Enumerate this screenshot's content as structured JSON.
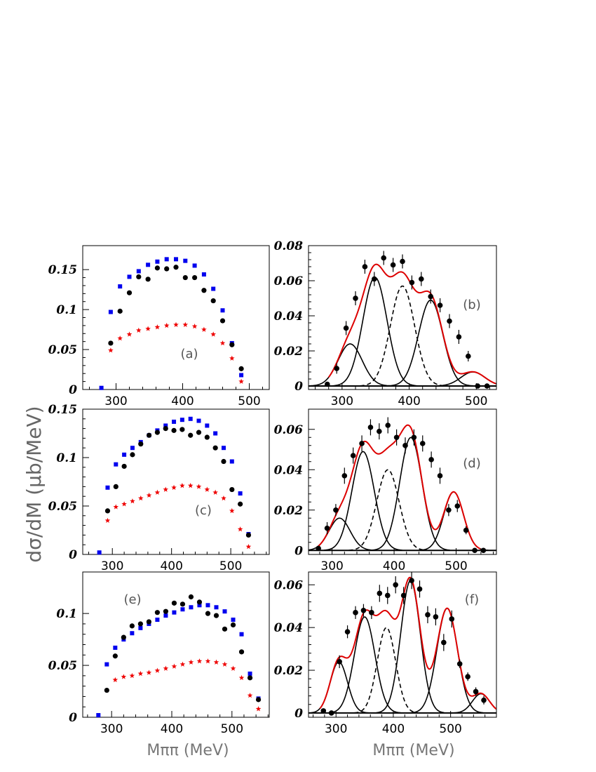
{
  "figure": {
    "y_axis_title": "dσ/dM  (μb/MeV)",
    "x_axis_title": "Mππ (MeV)"
  },
  "colors": {
    "blue": "#0000ee",
    "red": "#ee0000",
    "black": "#000000",
    "fit": "#dd0000"
  },
  "chart_data": [
    {
      "id": "a",
      "type": "scatter",
      "panel_label": "(a)",
      "xlim": [
        250,
        530
      ],
      "ylim": [
        0,
        0.18
      ],
      "xticks": [
        300,
        400,
        500
      ],
      "xtick_labels": [
        "300",
        "400",
        "500"
      ],
      "yticks": [
        0,
        0.05,
        0.1,
        0.15
      ],
      "ytick_labels": [
        "0",
        "0.05",
        "0.1",
        "0.15"
      ],
      "series": [
        {
          "marker": "square",
          "color": "blue",
          "x": [
            278,
            292,
            306,
            320,
            334,
            348,
            362,
            376,
            390,
            404,
            418,
            432,
            446,
            460,
            474,
            488
          ],
          "y": [
            0.002,
            0.097,
            0.129,
            0.141,
            0.148,
            0.156,
            0.16,
            0.163,
            0.163,
            0.161,
            0.155,
            0.144,
            0.126,
            0.099,
            0.058,
            0.018
          ]
        },
        {
          "marker": "circle",
          "color": "black",
          "x": [
            292,
            306,
            320,
            334,
            348,
            362,
            376,
            390,
            404,
            418,
            432,
            446,
            460,
            474,
            488
          ],
          "y": [
            0.058,
            0.098,
            0.121,
            0.141,
            0.138,
            0.152,
            0.151,
            0.153,
            0.14,
            0.14,
            0.124,
            0.111,
            0.086,
            0.056,
            0.026
          ]
        },
        {
          "marker": "star",
          "color": "red",
          "x": [
            292,
            306,
            320,
            334,
            348,
            362,
            376,
            390,
            404,
            418,
            432,
            446,
            460,
            474,
            488
          ],
          "y": [
            0.049,
            0.064,
            0.069,
            0.074,
            0.076,
            0.078,
            0.08,
            0.081,
            0.081,
            0.079,
            0.075,
            0.069,
            0.058,
            0.039,
            0.01
          ]
        }
      ]
    },
    {
      "id": "b",
      "type": "scatter",
      "panel_label": "(b)",
      "xlim": [
        250,
        530
      ],
      "ylim": [
        -0.002,
        0.08
      ],
      "xticks": [
        300,
        400,
        500
      ],
      "xtick_labels": [
        "300",
        "400",
        "500"
      ],
      "yticks": [
        0,
        0.02,
        0.04,
        0.06,
        0.08
      ],
      "ytick_labels": [
        "0",
        "0.02",
        "0.04",
        "0.06",
        "0.08"
      ],
      "data": {
        "x": [
          278,
          292,
          306,
          320,
          334,
          348,
          362,
          376,
          390,
          404,
          418,
          432,
          446,
          460,
          474,
          488,
          502,
          516
        ],
        "y": [
          0.001,
          0.01,
          0.033,
          0.05,
          0.068,
          0.061,
          0.073,
          0.069,
          0.071,
          0.059,
          0.061,
          0.051,
          0.046,
          0.037,
          0.028,
          0.017,
          0.0,
          0.0
        ],
        "err": [
          0.001,
          0.003,
          0.004,
          0.004,
          0.004,
          0.004,
          0.004,
          0.004,
          0.004,
          0.004,
          0.004,
          0.004,
          0.004,
          0.004,
          0.004,
          0.003,
          0.001,
          0.001
        ]
      },
      "components": [
        {
          "style": "solid",
          "amp": 0.024,
          "mu": 312,
          "sigma": 18
        },
        {
          "style": "solid",
          "amp": 0.062,
          "mu": 349,
          "sigma": 18
        },
        {
          "style": "dashed",
          "amp": 0.057,
          "mu": 390,
          "sigma": 18
        },
        {
          "style": "solid",
          "amp": 0.049,
          "mu": 432,
          "sigma": 18
        },
        {
          "style": "solid",
          "amp": 0.008,
          "mu": 495,
          "sigma": 18
        }
      ],
      "fit_range": [
        280,
        530
      ]
    },
    {
      "id": "c",
      "type": "scatter",
      "panel_label": "(c)",
      "xlim": [
        250,
        565
      ],
      "ylim": [
        0,
        0.15
      ],
      "xticks": [
        300,
        400,
        500
      ],
      "xtick_labels": [
        "300",
        "400",
        "500"
      ],
      "yticks": [
        0,
        0.05,
        0.1,
        0.15
      ],
      "ytick_labels": [
        "0",
        "0.05",
        "0.1",
        "0.15"
      ],
      "series": [
        {
          "marker": "square",
          "color": "blue",
          "x": [
            278,
            292,
            306,
            320,
            334,
            348,
            362,
            376,
            390,
            404,
            418,
            432,
            446,
            460,
            474,
            488,
            502,
            516,
            530
          ],
          "y": [
            0.002,
            0.069,
            0.093,
            0.103,
            0.11,
            0.116,
            0.123,
            0.128,
            0.133,
            0.137,
            0.139,
            0.14,
            0.138,
            0.133,
            0.125,
            0.11,
            0.096,
            0.063,
            0.021
          ]
        },
        {
          "marker": "circle",
          "color": "black",
          "x": [
            292,
            306,
            320,
            334,
            348,
            362,
            376,
            390,
            404,
            418,
            432,
            446,
            460,
            474,
            488,
            502,
            516,
            530
          ],
          "y": [
            0.045,
            0.07,
            0.091,
            0.103,
            0.114,
            0.123,
            0.126,
            0.13,
            0.128,
            0.129,
            0.123,
            0.126,
            0.121,
            0.11,
            0.096,
            0.067,
            0.052,
            0.02
          ]
        },
        {
          "marker": "star",
          "color": "red",
          "x": [
            292,
            306,
            320,
            334,
            348,
            362,
            376,
            390,
            404,
            418,
            432,
            446,
            460,
            474,
            488,
            502,
            516,
            530
          ],
          "y": [
            0.035,
            0.049,
            0.052,
            0.055,
            0.058,
            0.061,
            0.064,
            0.067,
            0.069,
            0.071,
            0.071,
            0.07,
            0.067,
            0.064,
            0.058,
            0.045,
            0.026,
            0.008
          ]
        }
      ]
    },
    {
      "id": "d",
      "type": "scatter",
      "panel_label": "(d)",
      "xlim": [
        262,
        565
      ],
      "ylim": [
        -0.002,
        0.07
      ],
      "xticks": [
        300,
        400,
        500
      ],
      "xtick_labels": [
        "300",
        "400",
        "500"
      ],
      "yticks": [
        0,
        0.02,
        0.04,
        0.06
      ],
      "ytick_labels": [
        "0",
        "0.02",
        "0.04",
        "0.06"
      ],
      "data": {
        "x": [
          278,
          292,
          306,
          320,
          334,
          348,
          362,
          376,
          390,
          404,
          418,
          432,
          446,
          460,
          474,
          488,
          502,
          516,
          530,
          544
        ],
        "y": [
          0.001,
          0.011,
          0.02,
          0.037,
          0.047,
          0.053,
          0.061,
          0.059,
          0.062,
          0.056,
          0.052,
          0.056,
          0.053,
          0.045,
          0.037,
          0.02,
          0.022,
          0.01,
          0.0,
          0.0
        ],
        "err": [
          0.001,
          0.003,
          0.003,
          0.004,
          0.004,
          0.004,
          0.004,
          0.004,
          0.004,
          0.004,
          0.004,
          0.004,
          0.004,
          0.004,
          0.004,
          0.003,
          0.003,
          0.002,
          0.001,
          0.001
        ]
      },
      "components": [
        {
          "style": "solid",
          "amp": 0.016,
          "mu": 312,
          "sigma": 17
        },
        {
          "style": "solid",
          "amp": 0.049,
          "mu": 350,
          "sigma": 18
        },
        {
          "style": "dashed",
          "amp": 0.04,
          "mu": 390,
          "sigma": 18
        },
        {
          "style": "solid",
          "amp": 0.056,
          "mu": 427,
          "sigma": 18
        },
        {
          "style": "solid",
          "amp": 0.029,
          "mu": 496,
          "sigma": 16
        }
      ],
      "fit_range": [
        278,
        540
      ]
    },
    {
      "id": "e",
      "type": "scatter",
      "panel_label": "(e)",
      "xlim": [
        252,
        562
      ],
      "ylim": [
        0,
        0.14
      ],
      "xticks": [
        300,
        400,
        500
      ],
      "xtick_labels": [
        "300",
        "400",
        "500"
      ],
      "yticks": [
        0,
        0.05,
        0.1
      ],
      "ytick_labels": [
        "0",
        "0.05",
        "0.1"
      ],
      "series": [
        {
          "marker": "square",
          "color": "blue",
          "x": [
            278,
            292,
            306,
            320,
            334,
            348,
            362,
            376,
            390,
            404,
            418,
            432,
            446,
            460,
            474,
            488,
            502,
            516,
            530,
            544
          ],
          "y": [
            0.002,
            0.051,
            0.067,
            0.075,
            0.081,
            0.086,
            0.09,
            0.094,
            0.098,
            0.101,
            0.104,
            0.106,
            0.108,
            0.108,
            0.106,
            0.102,
            0.094,
            0.08,
            0.042,
            0.018
          ]
        },
        {
          "marker": "circle",
          "color": "black",
          "x": [
            292,
            306,
            320,
            334,
            348,
            362,
            376,
            390,
            404,
            418,
            432,
            446,
            460,
            474,
            488,
            502,
            516,
            530,
            544
          ],
          "y": [
            0.026,
            0.059,
            0.077,
            0.088,
            0.09,
            0.092,
            0.101,
            0.102,
            0.11,
            0.109,
            0.116,
            0.111,
            0.1,
            0.098,
            0.085,
            0.089,
            0.063,
            0.038,
            0.017
          ]
        },
        {
          "marker": "star",
          "color": "red",
          "x": [
            306,
            320,
            334,
            348,
            362,
            376,
            390,
            404,
            418,
            432,
            446,
            460,
            474,
            488,
            502,
            516,
            530,
            544
          ],
          "y": [
            0.036,
            0.039,
            0.04,
            0.042,
            0.043,
            0.045,
            0.047,
            0.049,
            0.051,
            0.053,
            0.054,
            0.054,
            0.053,
            0.051,
            0.047,
            0.038,
            0.021,
            0.008
          ]
        }
      ]
    },
    {
      "id": "f",
      "type": "scatter",
      "panel_label": "(f)",
      "xlim": [
        252,
        580
      ],
      "ylim": [
        -0.002,
        0.066
      ],
      "xticks": [
        300,
        400,
        500
      ],
      "xtick_labels": [
        "300",
        "400",
        "500"
      ],
      "yticks": [
        0,
        0.02,
        0.04,
        0.06
      ],
      "ytick_labels": [
        "0",
        "0.02",
        "0.04",
        "0.06"
      ],
      "data": {
        "x": [
          278,
          292,
          306,
          320,
          334,
          348,
          362,
          376,
          390,
          404,
          418,
          432,
          446,
          460,
          474,
          488,
          502,
          516,
          530,
          544,
          558
        ],
        "y": [
          0.001,
          0.0,
          0.024,
          0.038,
          0.047,
          0.048,
          0.047,
          0.056,
          0.055,
          0.06,
          0.055,
          0.062,
          0.058,
          0.046,
          0.045,
          0.033,
          0.044,
          0.023,
          0.017,
          0.01,
          0.006
        ],
        "err": [
          0.001,
          0.001,
          0.003,
          0.003,
          0.003,
          0.003,
          0.003,
          0.004,
          0.004,
          0.004,
          0.004,
          0.004,
          0.004,
          0.004,
          0.004,
          0.004,
          0.004,
          0.002,
          0.002,
          0.002,
          0.002
        ]
      },
      "components": [
        {
          "style": "solid",
          "amp": 0.024,
          "mu": 305,
          "sigma": 15
        },
        {
          "style": "solid",
          "amp": 0.045,
          "mu": 350,
          "sigma": 18
        },
        {
          "style": "dashed",
          "amp": 0.04,
          "mu": 388,
          "sigma": 16
        },
        {
          "style": "solid",
          "amp": 0.062,
          "mu": 430,
          "sigma": 17
        },
        {
          "style": "solid",
          "amp": 0.049,
          "mu": 494,
          "sigma": 18
        },
        {
          "style": "solid",
          "amp": 0.009,
          "mu": 553,
          "sigma": 15
        }
      ],
      "fit_range": [
        272,
        580
      ]
    }
  ]
}
